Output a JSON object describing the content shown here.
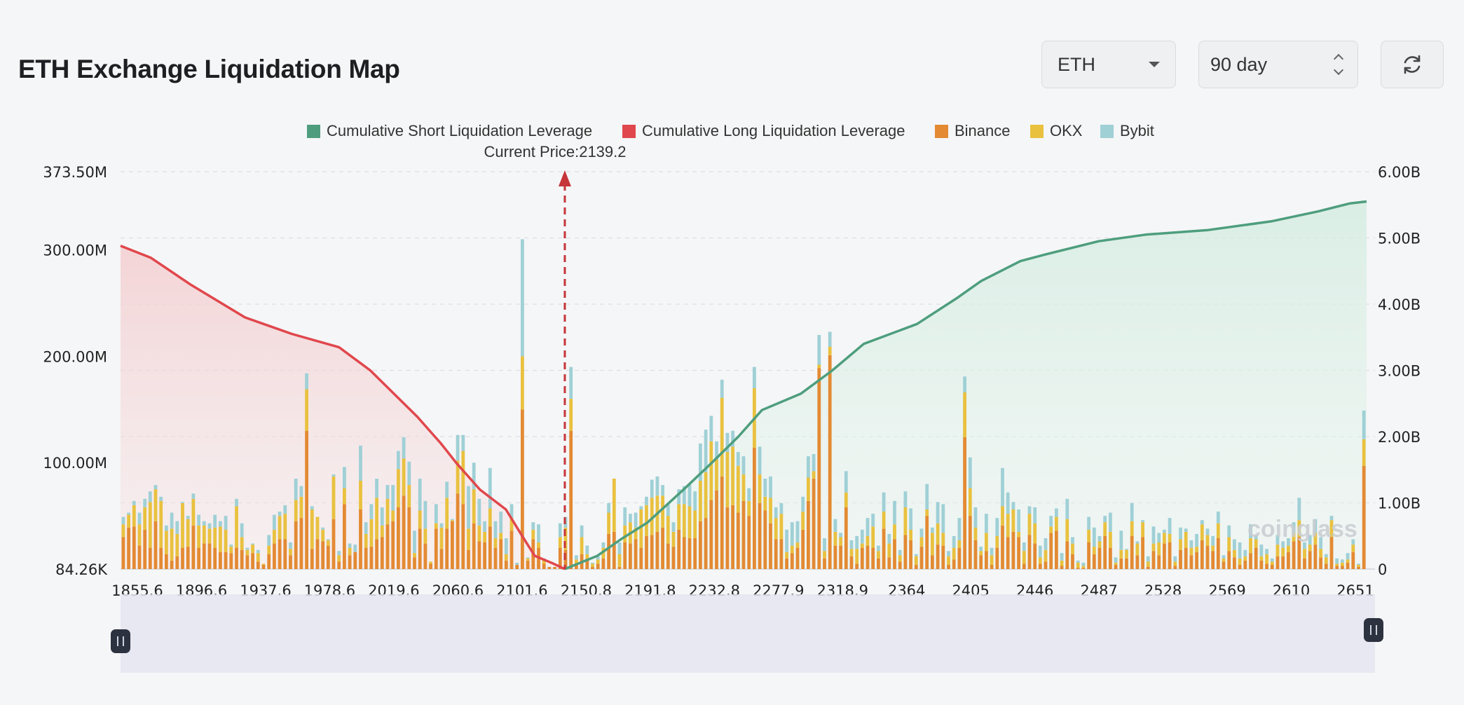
{
  "header": {
    "title": "ETH Exchange Liquidation Map",
    "asset_select": {
      "value": "ETH"
    },
    "period_select": {
      "value": "90 day"
    },
    "refresh_icon": "refresh-icon"
  },
  "watermark": "coinglass",
  "chart_data": {
    "type": "bar",
    "legend": [
      {
        "name": "Cumulative Short Liquidation Leverage",
        "color": "#4e9e7e"
      },
      {
        "name": "Cumulative Long Liquidation Leverage",
        "color": "#e0474c"
      },
      {
        "name": "Binance",
        "color": "#e38a33"
      },
      {
        "name": "OKX",
        "color": "#e9c13f"
      },
      {
        "name": "Bybit",
        "color": "#9fd0d6"
      }
    ],
    "legend_position": "top-center",
    "current_price_label": "Current Price:2139.2",
    "current_price": 2139.2,
    "x_tick_labels": [
      "1855.6",
      "1896.6",
      "1937.6",
      "1978.6",
      "2019.6",
      "2060.6",
      "2101.6",
      "2150.8",
      "2191.8",
      "2232.8",
      "2277.9",
      "2318.9",
      "2364",
      "2405",
      "2446",
      "2487",
      "2528",
      "2569",
      "2610",
      "2651"
    ],
    "x_range": [
      1855.6,
      2651
    ],
    "y_left_tick_labels": [
      "373.50M",
      "300.00M",
      "200.00M",
      "100.00M",
      "84.26K"
    ],
    "y_left_range_millions": [
      0,
      373.5
    ],
    "y_right_tick_labels": [
      "6.00B",
      "5.00B",
      "4.00B",
      "3.00B",
      "2.00B",
      "1.00B",
      "0"
    ],
    "y_right_range_billions": [
      0,
      6.0
    ],
    "grid": true,
    "bar_colors": {
      "binance": "#e38a33",
      "okx": "#e9c13f",
      "bybit": "#9fd0d6"
    },
    "bars": {
      "binance": [
        30,
        39,
        40,
        22,
        37,
        20,
        45,
        20,
        14,
        8,
        12,
        20,
        21,
        41,
        20,
        24,
        24,
        20,
        16,
        16,
        15,
        20,
        18,
        13,
        15,
        7,
        4,
        14,
        24,
        28,
        28,
        13,
        45,
        48,
        130,
        19,
        28,
        26,
        22,
        47,
        7,
        61,
        13,
        16,
        56,
        20,
        21,
        28,
        30,
        42,
        45,
        58,
        69,
        58,
        11,
        38,
        24,
        5,
        38,
        19,
        38,
        45,
        71,
        61,
        18,
        43,
        26,
        25,
        40,
        20,
        28,
        8,
        36,
        4,
        150,
        8,
        28,
        20,
        5,
        2,
        2,
        20,
        18,
        130,
        5,
        14,
        10,
        2,
        5,
        10,
        33,
        35,
        2,
        25,
        24,
        28,
        20,
        31,
        32,
        35,
        39,
        24,
        21,
        37,
        30,
        29,
        29,
        45,
        48,
        65,
        74,
        87,
        58,
        60,
        53,
        64,
        50,
        114,
        62,
        55,
        43,
        28,
        28,
        10,
        15,
        20,
        37,
        64,
        85,
        189,
        10,
        201,
        22,
        22,
        58,
        12,
        5,
        20,
        22,
        20,
        10,
        38,
        11,
        28,
        7,
        32,
        27,
        4,
        21,
        50,
        13,
        23,
        22,
        4,
        9,
        20,
        124,
        50,
        27,
        13,
        17,
        4,
        20,
        41,
        30,
        35,
        30,
        5,
        32,
        24,
        5,
        7,
        34,
        36,
        3,
        26,
        14,
        1,
        1,
        25,
        14,
        20,
        31,
        20,
        4,
        10,
        10,
        31,
        13,
        30,
        2,
        17,
        13,
        24,
        25,
        3,
        18,
        20,
        13,
        16,
        27,
        22,
        17,
        29,
        7,
        17,
        11,
        4,
        8,
        15,
        20,
        8,
        5,
        4,
        12,
        12,
        16,
        26,
        30,
        10,
        17,
        23,
        11,
        5,
        30,
        3,
        3,
        6,
        16,
        2,
        97
      ],
      "okx": [
        12,
        12,
        20,
        20,
        21,
        43,
        30,
        44,
        22,
        30,
        21,
        42,
        26,
        25,
        21,
        17,
        14,
        19,
        24,
        21,
        6,
        39,
        12,
        5,
        8,
        8,
        1,
        8,
        13,
        22,
        24,
        6,
        20,
        20,
        39,
        37,
        21,
        11,
        5,
        40,
        6,
        15,
        7,
        0,
        27,
        13,
        26,
        39,
        11,
        24,
        10,
        36,
        35,
        21,
        4,
        17,
        14,
        2,
        5,
        20,
        29,
        1,
        31,
        50,
        20,
        32,
        15,
        10,
        17,
        9,
        6,
        6,
        12,
        0,
        50,
        2,
        9,
        5,
        3,
        0,
        0,
        10,
        21,
        30,
        4,
        16,
        4,
        3,
        4,
        10,
        20,
        50,
        12,
        16,
        20,
        11,
        36,
        29,
        35,
        34,
        30,
        26,
        14,
        24,
        31,
        30,
        26,
        38,
        43,
        55,
        29,
        74,
        52,
        55,
        44,
        25,
        14,
        56,
        27,
        13,
        24,
        20,
        24,
        6,
        7,
        5,
        17,
        22,
        7,
        3,
        7,
        8,
        13,
        8,
        14,
        7,
        14,
        4,
        9,
        20,
        7,
        16,
        13,
        14,
        6,
        26,
        10,
        8,
        9,
        6,
        21,
        20,
        12,
        8,
        11,
        7,
        42,
        26,
        12,
        4,
        17,
        9,
        11,
        18,
        22,
        21,
        5,
        12,
        20,
        19,
        6,
        11,
        6,
        13,
        5,
        21,
        10,
        5,
        2,
        12,
        7,
        6,
        13,
        15,
        2,
        8,
        8,
        14,
        11,
        14,
        5,
        7,
        12,
        10,
        8,
        4,
        10,
        15,
        7,
        5,
        15,
        10,
        5,
        14,
        3,
        13,
        7,
        6,
        4,
        14,
        8,
        4,
        9,
        3,
        11,
        8,
        6,
        8,
        16,
        9,
        6,
        11,
        8,
        6,
        16,
        2,
        3,
        3,
        7,
        2,
        25
      ],
      "okx_note": "values in millions",
      "bybit": [
        7,
        2,
        4,
        11,
        8,
        10,
        4,
        4,
        5,
        15,
        12,
        1,
        3,
        5,
        10,
        4,
        5,
        12,
        5,
        13,
        2,
        7,
        13,
        2,
        1,
        3,
        0,
        10,
        14,
        4,
        8,
        6,
        20,
        10,
        15,
        3,
        0,
        2,
        1,
        2,
        4,
        20,
        4,
        7,
        33,
        11,
        14,
        18,
        17,
        13,
        24,
        17,
        20,
        22,
        21,
        30,
        26,
        0,
        18,
        4,
        15,
        1,
        24,
        15,
        40,
        25,
        25,
        10,
        38,
        16,
        20,
        15,
        13,
        2,
        110,
        1,
        7,
        17,
        2,
        0,
        0,
        13,
        10,
        30,
        4,
        11,
        8,
        1,
        3,
        5,
        9,
        0,
        11,
        17,
        8,
        14,
        3,
        8,
        17,
        18,
        10,
        11,
        9,
        14,
        17,
        21,
        18,
        35,
        40,
        24,
        17,
        17,
        18,
        15,
        13,
        17,
        12,
        20,
        26,
        17,
        20,
        10,
        10,
        21,
        22,
        20,
        14,
        20,
        16,
        28,
        12,
        14,
        12,
        4,
        20,
        8,
        12,
        13,
        17,
        12,
        5,
        18,
        9,
        22,
        5,
        15,
        20,
        2,
        8,
        24,
        5,
        20,
        27,
        5,
        11,
        21,
        15,
        29,
        19,
        4,
        18,
        7,
        17,
        36,
        20,
        7,
        21,
        8,
        7,
        15,
        11,
        11,
        10,
        8,
        7,
        19,
        6,
        2,
        3,
        12,
        18,
        5,
        6,
        18,
        5,
        18,
        1,
        17,
        2,
        2,
        5,
        16,
        9,
        3,
        15,
        5,
        11,
        3,
        7,
        12,
        4,
        6,
        9,
        11,
        3,
        11,
        10,
        15,
        6,
        13,
        4,
        11,
        5,
        3,
        9,
        6,
        7,
        10,
        21,
        6,
        9,
        13,
        11,
        3,
        4,
        5,
        3,
        6,
        5,
        1,
        27
      ]
    },
    "cumulative_long_billions_points": [
      [
        1855.6,
        4.88
      ],
      [
        1875,
        4.7
      ],
      [
        1900,
        4.3
      ],
      [
        1935,
        3.8
      ],
      [
        1965,
        3.55
      ],
      [
        1995,
        3.35
      ],
      [
        2015,
        3.0
      ],
      [
        2045,
        2.3
      ],
      [
        2060,
        1.9
      ],
      [
        2070,
        1.6
      ],
      [
        2085,
        1.2
      ],
      [
        2101.6,
        0.9
      ],
      [
        2112,
        0.5
      ],
      [
        2120,
        0.2
      ],
      [
        2132,
        0.08
      ],
      [
        2139.2,
        0.0
      ]
    ],
    "cumulative_short_billions_points": [
      [
        2139.2,
        0.0
      ],
      [
        2160,
        0.2
      ],
      [
        2175,
        0.45
      ],
      [
        2191.8,
        0.7
      ],
      [
        2215,
        1.2
      ],
      [
        2232.8,
        1.6
      ],
      [
        2250,
        2.0
      ],
      [
        2265,
        2.4
      ],
      [
        2290,
        2.65
      ],
      [
        2310,
        3.0
      ],
      [
        2330,
        3.4
      ],
      [
        2364,
        3.7
      ],
      [
        2390,
        4.1
      ],
      [
        2405,
        4.35
      ],
      [
        2430,
        4.65
      ],
      [
        2446,
        4.75
      ],
      [
        2480,
        4.95
      ],
      [
        2510,
        5.05
      ],
      [
        2550,
        5.12
      ],
      [
        2590,
        5.25
      ],
      [
        2620,
        5.4
      ],
      [
        2640,
        5.52
      ],
      [
        2651,
        5.55
      ]
    ]
  }
}
